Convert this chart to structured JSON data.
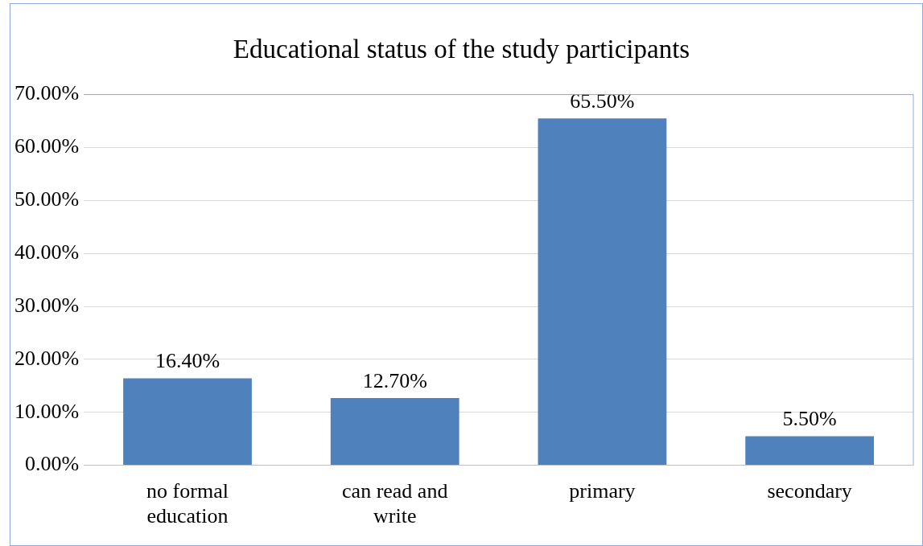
{
  "chart_data": {
    "type": "bar",
    "title": "Educational status of the study participants",
    "categories": [
      "no formal education",
      "can read and write",
      "primary",
      "secondary"
    ],
    "values": [
      16.4,
      12.7,
      65.5,
      5.5
    ],
    "value_labels": [
      "16.40%",
      "12.70%",
      "65.50%",
      "5.50%"
    ],
    "color": "#4f81bd",
    "ylim": [
      0,
      70
    ],
    "yticks": [
      {
        "value": 0,
        "label": "0.00%"
      },
      {
        "value": 10,
        "label": "10.00%"
      },
      {
        "value": 20,
        "label": "20.00%"
      },
      {
        "value": 30,
        "label": "30.00%"
      },
      {
        "value": 40,
        "label": "40.00%"
      },
      {
        "value": 50,
        "label": "50.00%"
      },
      {
        "value": 60,
        "label": "60.00%"
      },
      {
        "value": 70,
        "label": "70.00%"
      }
    ],
    "grid": "y",
    "legend": false
  }
}
